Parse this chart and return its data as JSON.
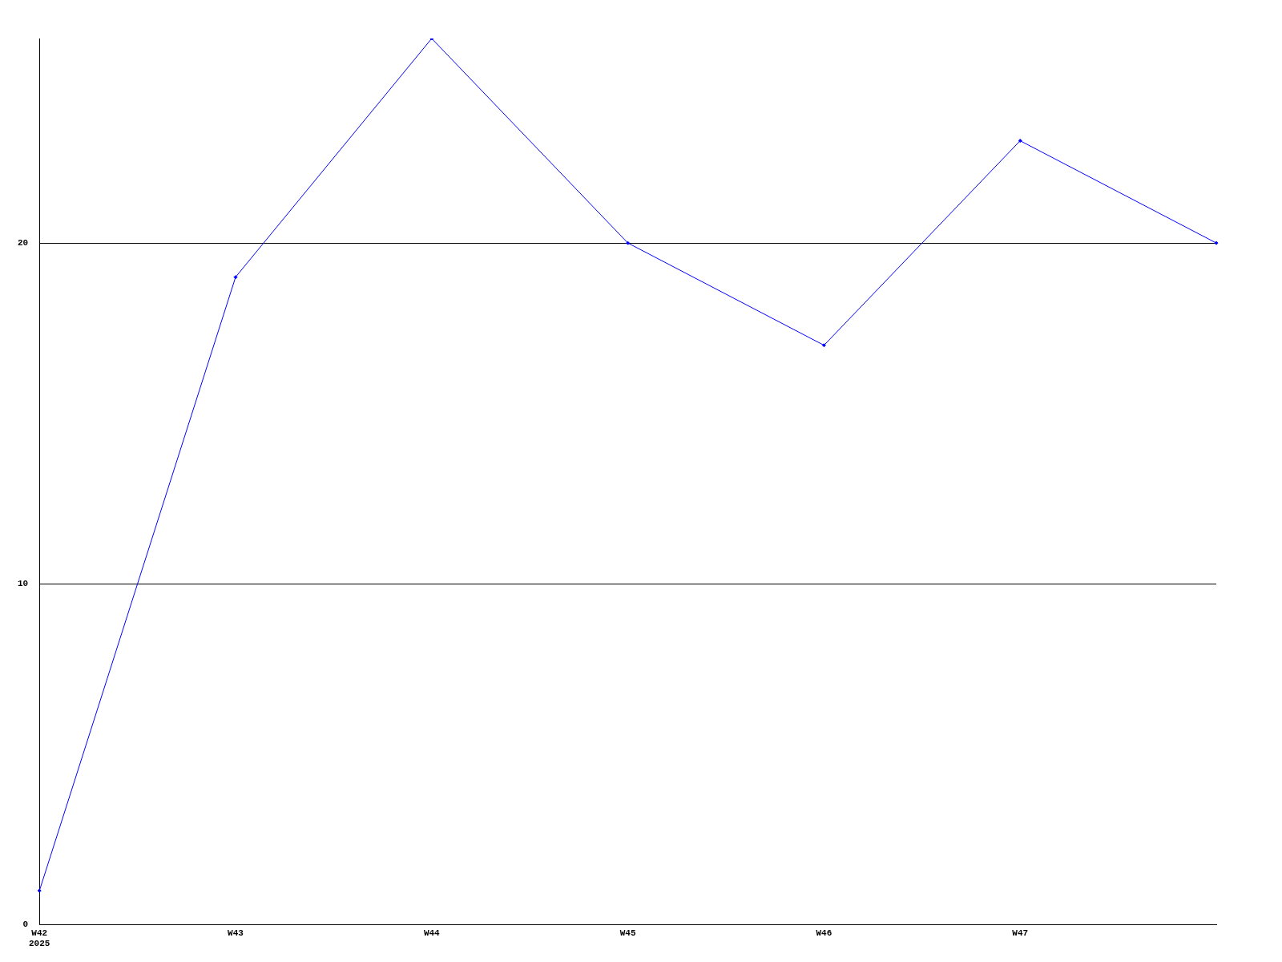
{
  "chart_data": {
    "type": "line",
    "categories": [
      "W42\n2025",
      "W43",
      "W44",
      "W45",
      "W46",
      "W47",
      null
    ],
    "series": [
      {
        "color": "#0000ff",
        "values": [
          1,
          19,
          26,
          20,
          17,
          23,
          20
        ]
      }
    ],
    "ylim": [
      0,
      26
    ],
    "yticks": [
      0,
      10,
      20
    ],
    "grid": "y",
    "legend": false,
    "marker": "diamond",
    "line_style": "solid"
  }
}
